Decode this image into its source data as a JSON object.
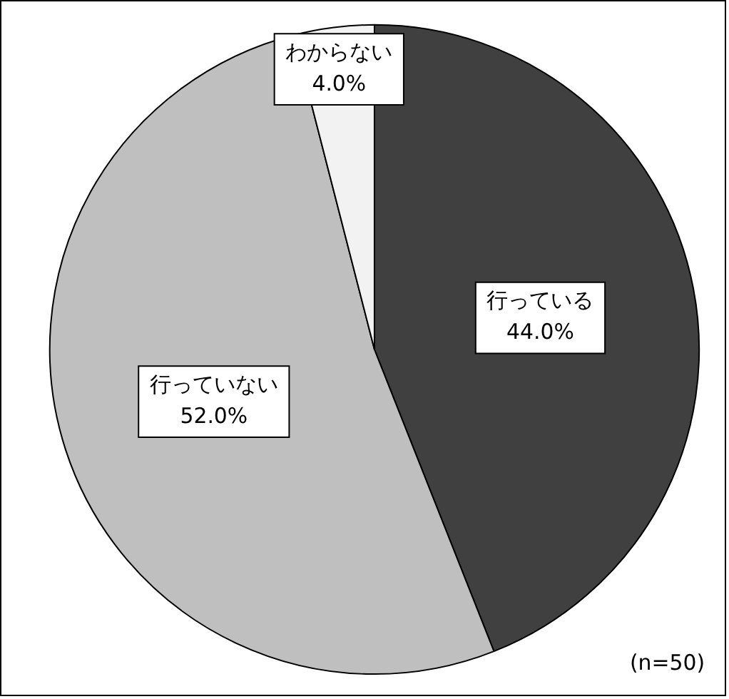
{
  "chart_data": {
    "type": "pie",
    "categories": [
      "行っている",
      "行っていない",
      "わからない"
    ],
    "values": [
      44.0,
      52.0,
      4.0
    ],
    "colors": [
      "#404040",
      "#bfbfbf",
      "#f2f2f2"
    ],
    "value_labels": [
      "44.0%",
      "52.0%",
      "4.0%"
    ],
    "legend": false,
    "annotations": [
      "(n=50)"
    ]
  }
}
